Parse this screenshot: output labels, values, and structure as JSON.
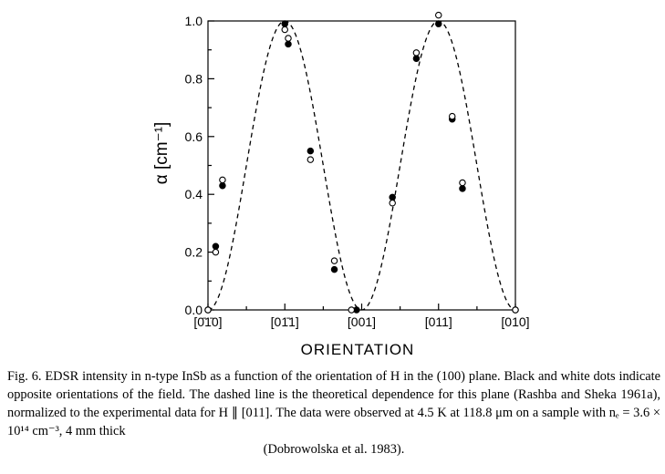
{
  "chart_data": {
    "type": "scatter",
    "xlabel": "ORIENTATION",
    "ylabel": "α [cm⁻¹]",
    "x_ticks": [
      "[0̄1̄0]",
      "[01̄1]",
      "[001]",
      "[011]",
      "[010]"
    ],
    "x_tick_angles_deg": [
      0,
      45,
      90,
      135,
      180
    ],
    "xlim": [
      0,
      180
    ],
    "ylim": [
      0,
      1.0
    ],
    "y_ticks": [
      "0.0",
      "0.2",
      "0.4",
      "0.6",
      "0.8",
      "1.0"
    ],
    "grid": false,
    "legend": "none",
    "series": [
      {
        "style": "filled-dots",
        "x": [
          0,
          4.5,
          8.5,
          45,
          47,
          60,
          74,
          87,
          108,
          122,
          135,
          143,
          149,
          180
        ],
        "y": [
          0.0,
          0.22,
          0.43,
          0.99,
          0.92,
          0.55,
          0.14,
          0.0,
          0.39,
          0.87,
          0.99,
          0.66,
          0.42,
          0.0
        ]
      },
      {
        "style": "open-dots",
        "x": [
          0,
          4.5,
          8.5,
          45,
          47,
          60,
          74,
          84,
          108,
          122,
          135,
          143,
          149,
          180
        ],
        "y": [
          0.0,
          0.2,
          0.45,
          0.97,
          0.94,
          0.52,
          0.17,
          0.0,
          0.37,
          0.89,
          1.02,
          0.67,
          0.44,
          0.0
        ]
      },
      {
        "style": "dashed-line",
        "formula": "sin^2(2*theta)",
        "x_step": 2,
        "x_range": [
          0,
          180
        ]
      }
    ]
  },
  "caption": {
    "lines": [
      "Fig. 6. EDSR intensity in n-type InSb as a function of the orientation of H in the (100) plane. Black and white dots indicate opposite orientations of the field. The dashed line is the theoretical dependence for this plane (Rashba and Sheka 1961a), normalized to the experimental data for H ∥ [011]. The data were observed at 4.5 K at 118.8 μm on a sample with nₑ = 3.6 × 10¹⁴ cm⁻³, 4 mm thick",
      "(Dobrowolska et al. 1983)."
    ]
  }
}
